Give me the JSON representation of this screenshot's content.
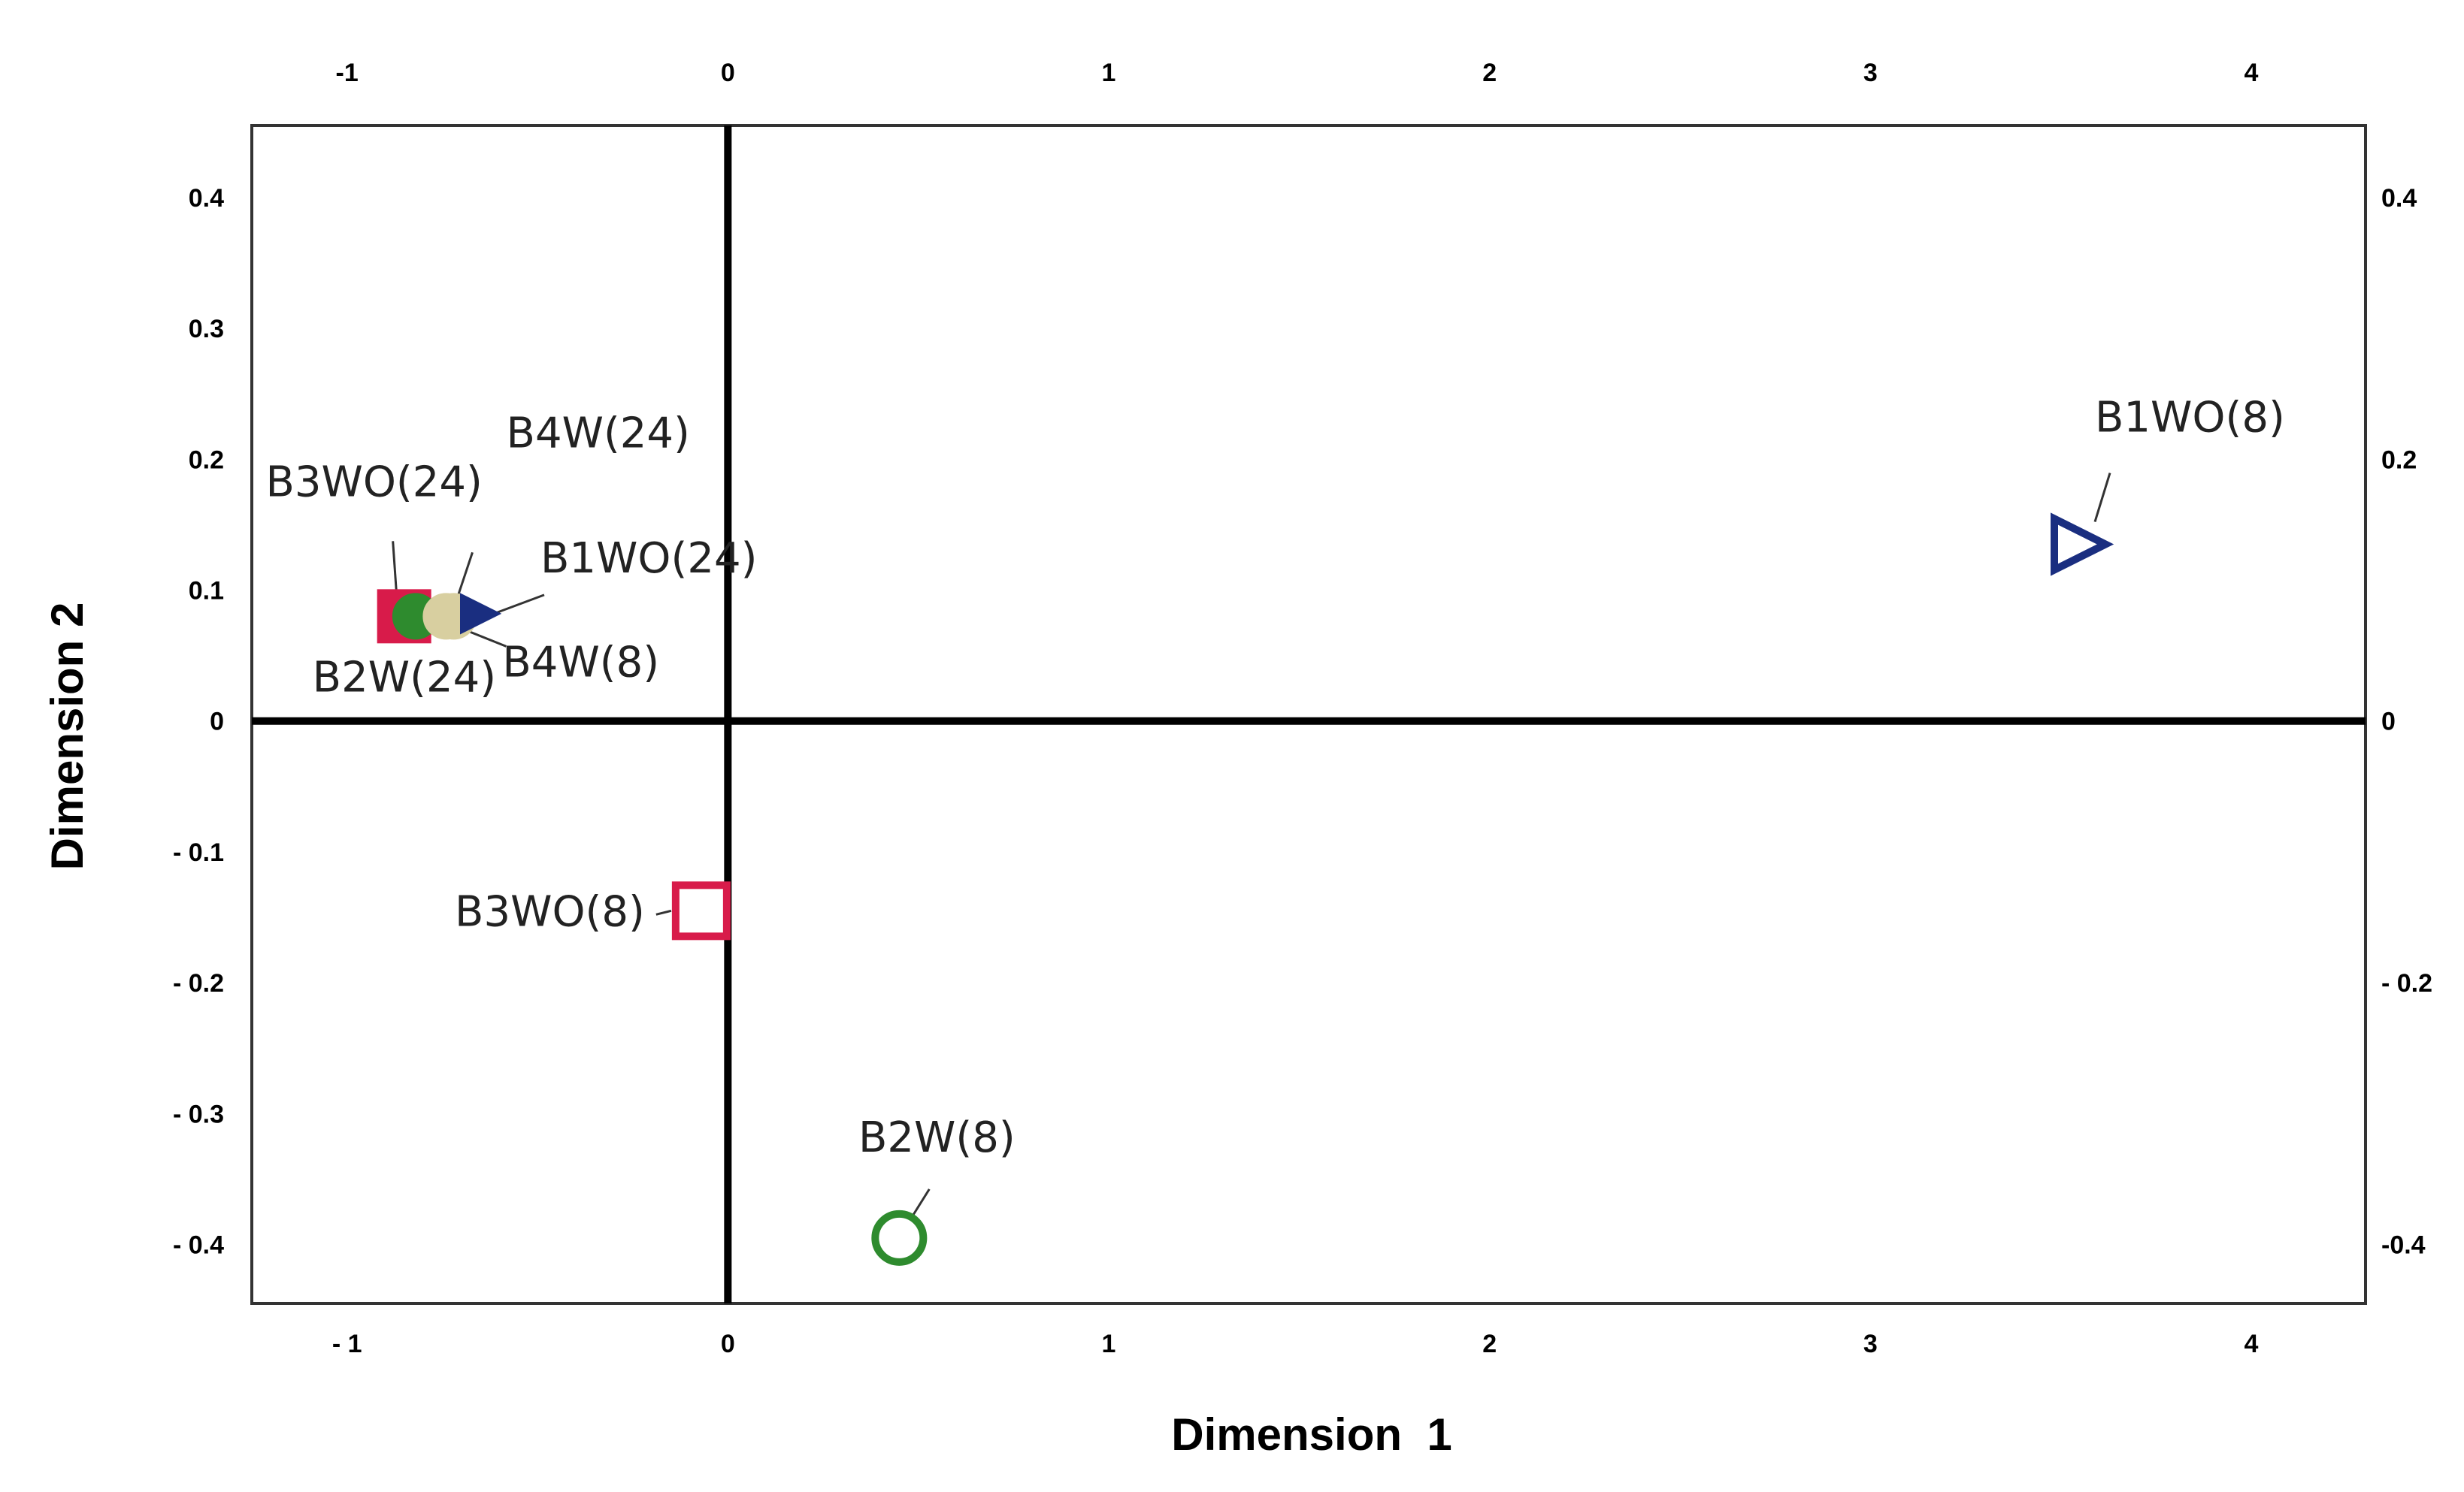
{
  "chart_data": {
    "type": "scatter",
    "title": "",
    "xlabel": "Dimension  1",
    "ylabel": "Dimension 2",
    "xlim": [
      -1.25,
      4.3
    ],
    "ylim": [
      -0.445,
      0.455
    ],
    "grid": false,
    "legend": "none",
    "x_ticks": [
      {
        "value": -1,
        "label": "- 1",
        "top_label": "-1"
      },
      {
        "value": 0,
        "label": "0",
        "top_label": "0"
      },
      {
        "value": 1,
        "label": "1",
        "top_label": "1"
      },
      {
        "value": 2,
        "label": "2",
        "top_label": "2"
      },
      {
        "value": 3,
        "label": "3",
        "top_label": "3"
      },
      {
        "value": 4,
        "label": "4",
        "top_label": "4"
      }
    ],
    "y_ticks_left": [
      {
        "value": 0.4,
        "label": "0.4"
      },
      {
        "value": 0.3,
        "label": "0.3"
      },
      {
        "value": 0.2,
        "label": "0.2"
      },
      {
        "value": 0.1,
        "label": "0.1"
      },
      {
        "value": 0,
        "label": "0"
      },
      {
        "value": -0.1,
        "label": "- 0.1"
      },
      {
        "value": -0.2,
        "label": "- 0.2"
      },
      {
        "value": -0.3,
        "label": "- 0.3"
      },
      {
        "value": -0.4,
        "label": "- 0.4"
      }
    ],
    "y_ticks_right": [
      {
        "value": 0.4,
        "label": "0.4"
      },
      {
        "value": 0.2,
        "label": "0.2"
      },
      {
        "value": 0,
        "label": "0"
      },
      {
        "value": -0.2,
        "label": "- 0.2"
      },
      {
        "value": -0.4,
        "label": "-0.4"
      }
    ],
    "points": [
      {
        "label": "B1WO(8)",
        "x": 3.55,
        "y": 0.135,
        "marker": "triangle-right",
        "filled": false,
        "color": "#1a2e80"
      },
      {
        "label": "B2W(8)",
        "x": 0.45,
        "y": -0.395,
        "marker": "circle",
        "filled": false,
        "color": "#2e8b2e"
      },
      {
        "label": "B3WO(8)",
        "x": -0.07,
        "y": -0.145,
        "marker": "square",
        "filled": false,
        "color": "#d81b4a"
      },
      {
        "label": "B3WO(24)",
        "x": -0.85,
        "y": 0.08,
        "marker": "square",
        "filled": true,
        "color": "#d81b4a"
      },
      {
        "label": "B2W(24)",
        "x": -0.82,
        "y": 0.08,
        "marker": "circle",
        "filled": true,
        "color": "#2e8b2e"
      },
      {
        "label": "B4W(8)",
        "x": -0.74,
        "y": 0.08,
        "marker": "circle",
        "filled": true,
        "color": "#d8cfa0"
      },
      {
        "label": "B4W(24)",
        "x": -0.72,
        "y": 0.08,
        "marker": "circle",
        "filled": true,
        "color": "#d8cfa0"
      },
      {
        "label": "B1WO(24)",
        "x": -0.65,
        "y": 0.082,
        "marker": "triangle-right",
        "filled": true,
        "color": "#1a2e80"
      }
    ]
  }
}
